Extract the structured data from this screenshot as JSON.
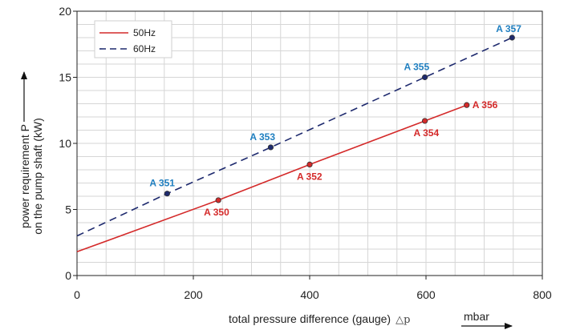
{
  "chart_data": {
    "type": "line",
    "xlabel": "total pressure difference (gauge)",
    "xlabel_symbol": "△p",
    "x_unit": "mbar",
    "ylabel_line1": "power requirement P",
    "ylabel_line2": "on the pump shaft (kW)",
    "xlim": [
      0,
      800
    ],
    "ylim": [
      0,
      20
    ],
    "x_ticks": [
      0,
      200,
      400,
      600,
      800
    ],
    "y_ticks": [
      0,
      5,
      10,
      15,
      20
    ],
    "grid": true,
    "legend_position": "top-left",
    "series": [
      {
        "name": "50Hz",
        "style": "solid",
        "color": "#d42a2a",
        "line_start": {
          "x": 0,
          "y": 1.8
        },
        "points": [
          {
            "label": "A 350",
            "x": 243,
            "y": 5.7
          },
          {
            "label": "A 352",
            "x": 400,
            "y": 8.4
          },
          {
            "label": "A 354",
            "x": 598,
            "y": 11.7
          },
          {
            "label": "A 356",
            "x": 670,
            "y": 12.9
          }
        ]
      },
      {
        "name": "60Hz",
        "style": "dashed",
        "color": "#1e2a6e",
        "label_color": "#1f7fc0",
        "line_start": {
          "x": 0,
          "y": 3.0
        },
        "points": [
          {
            "label": "A 351",
            "x": 155,
            "y": 6.2
          },
          {
            "label": "A 353",
            "x": 333,
            "y": 9.7
          },
          {
            "label": "A 355",
            "x": 598,
            "y": 15.0
          },
          {
            "label": "A 357",
            "x": 748,
            "y": 18.0
          }
        ]
      }
    ]
  }
}
